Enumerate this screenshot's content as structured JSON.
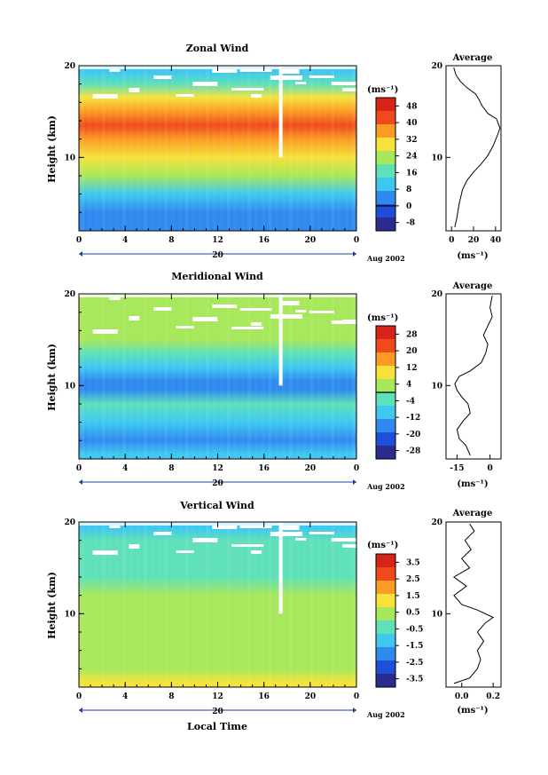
{
  "shared": {
    "xlabel": "Local Time",
    "ylabel": "Height (km)",
    "date_label": "20",
    "date_unit": "Aug 2002",
    "units": "(ms⁻¹)",
    "avg_units": "(ms⁻¹)",
    "avg_title": "Average"
  },
  "chart_data": [
    {
      "type": "heatmap",
      "title": "Zonal Wind",
      "xlabel": "Local Time",
      "ylabel": "Height (km)",
      "x_ticks": [
        "0",
        "4",
        "8",
        "12",
        "16",
        "20",
        "0"
      ],
      "xlim": [
        0,
        24
      ],
      "ylim": [
        2,
        20
      ],
      "y_ticks": [
        "10",
        "20"
      ],
      "colorbar": {
        "label": "(ms⁻¹)",
        "ticks": [
          "48",
          "40",
          "32",
          "24",
          "16",
          "8",
          "0",
          "-8"
        ],
        "range": [
          -12,
          52
        ],
        "zero_line": 0
      },
      "rows": [
        {
          "h": 2.5,
          "v": 2
        },
        {
          "h": 4,
          "v": 6
        },
        {
          "h": 6,
          "v": 12
        },
        {
          "h": 8,
          "v": 20
        },
        {
          "h": 10,
          "v": 29
        },
        {
          "h": 12,
          "v": 38
        },
        {
          "h": 13.5,
          "v": 44
        },
        {
          "h": 15,
          "v": 36
        },
        {
          "h": 16.5,
          "v": 28
        },
        {
          "h": 18,
          "v": 18
        },
        {
          "h": 19.3,
          "v": 8
        }
      ],
      "average": {
        "xticks": [
          "0",
          "20",
          "40"
        ],
        "xlim": [
          -5,
          45
        ],
        "profile": [
          [
            3,
            2.4
          ],
          [
            5,
            3.5
          ],
          [
            7,
            5
          ],
          [
            10,
            6.5
          ],
          [
            14,
            7.5
          ],
          [
            20,
            8.4
          ],
          [
            27,
            9.3
          ],
          [
            33,
            10.2
          ],
          [
            38,
            11.3
          ],
          [
            42,
            12.5
          ],
          [
            44,
            13.2
          ],
          [
            41,
            14.2
          ],
          [
            33,
            14.8
          ],
          [
            28,
            15.6
          ],
          [
            25,
            16.3
          ],
          [
            22,
            16.9
          ],
          [
            14,
            17.6
          ],
          [
            8,
            18.3
          ],
          [
            4,
            19
          ],
          [
            2,
            19.8
          ]
        ]
      }
    },
    {
      "type": "heatmap",
      "title": "Meridional Wind",
      "xlabel": "Local Time",
      "ylabel": "Height (km)",
      "x_ticks": [
        "0",
        "4",
        "8",
        "12",
        "16",
        "20",
        "0"
      ],
      "xlim": [
        0,
        24
      ],
      "ylim": [
        2,
        20
      ],
      "y_ticks": [
        "10",
        "20"
      ],
      "colorbar": {
        "label": "(ms⁻¹)",
        "ticks": [
          "28",
          "20",
          "12",
          "4",
          "-4",
          "-12",
          "-20",
          "-28"
        ],
        "range": [
          -32,
          32
        ],
        "zero_line": 0
      },
      "rows": [
        {
          "h": 2.5,
          "v": -10
        },
        {
          "h": 4,
          "v": -17
        },
        {
          "h": 6,
          "v": -9
        },
        {
          "h": 8,
          "v": -4
        },
        {
          "h": 9.5,
          "v": -14
        },
        {
          "h": 10.5,
          "v": -19
        },
        {
          "h": 12,
          "v": -8
        },
        {
          "h": 13.5,
          "v": -3
        },
        {
          "h": 15,
          "v": 0
        },
        {
          "h": 16.5,
          "v": 4
        },
        {
          "h": 18,
          "v": 6
        },
        {
          "h": 19.3,
          "v": 2
        }
      ],
      "average": {
        "xticks": [
          "-15",
          "0"
        ],
        "xlim": [
          -20,
          5
        ],
        "profile": [
          [
            -9,
            2.4
          ],
          [
            -11,
            3.5
          ],
          [
            -14,
            4.2
          ],
          [
            -15,
            5.2
          ],
          [
            -12,
            6.2
          ],
          [
            -9,
            7
          ],
          [
            -10,
            8
          ],
          [
            -13,
            8.8
          ],
          [
            -15,
            9.5
          ],
          [
            -16,
            10.2
          ],
          [
            -14,
            11
          ],
          [
            -9,
            11.6
          ],
          [
            -4,
            12.5
          ],
          [
            -2,
            13.5
          ],
          [
            -1,
            14.5
          ],
          [
            -3,
            15.5
          ],
          [
            -1,
            16.5
          ],
          [
            1,
            17.5
          ],
          [
            0,
            18.5
          ],
          [
            1,
            19.8
          ]
        ]
      }
    },
    {
      "type": "heatmap",
      "title": "Vertical Wind",
      "xlabel": "Local Time",
      "ylabel": "Height (km)",
      "x_ticks": [
        "0",
        "4",
        "8",
        "12",
        "16",
        "20",
        "0"
      ],
      "xlim": [
        0,
        24
      ],
      "ylim": [
        2,
        20
      ],
      "y_ticks": [
        "10",
        "20"
      ],
      "colorbar": {
        "label": "(ms⁻¹)",
        "ticks": [
          "3.5",
          "2.5",
          "1.5",
          "0.5",
          "-0.5",
          "-1.5",
          "-2.5",
          "-3.5"
        ],
        "range": [
          -4,
          4
        ],
        "zero_line": null
      },
      "rows": [
        {
          "h": 2.5,
          "v": 0.9
        },
        {
          "h": 4,
          "v": 0.6
        },
        {
          "h": 6,
          "v": 0.4
        },
        {
          "h": 8,
          "v": 0.3
        },
        {
          "h": 10,
          "v": 0.2
        },
        {
          "h": 12,
          "v": 0
        },
        {
          "h": 14,
          "v": -0.3
        },
        {
          "h": 16,
          "v": -0.6
        },
        {
          "h": 18,
          "v": -0.8
        },
        {
          "h": 19.3,
          "v": -0.9
        }
      ],
      "average": {
        "xticks": [
          "0.0",
          "0.2"
        ],
        "xlim": [
          -0.1,
          0.25
        ],
        "profile": [
          [
            -0.05,
            2.4
          ],
          [
            0.05,
            3
          ],
          [
            0.1,
            4
          ],
          [
            0.12,
            5
          ],
          [
            0.1,
            6
          ],
          [
            0.14,
            7
          ],
          [
            0.1,
            8
          ],
          [
            0.15,
            9
          ],
          [
            0.2,
            9.6
          ],
          [
            0.1,
            10.4
          ],
          [
            0,
            11
          ],
          [
            -0.05,
            12
          ],
          [
            0.03,
            13
          ],
          [
            -0.05,
            14
          ],
          [
            0.05,
            15
          ],
          [
            0,
            16
          ],
          [
            0.06,
            17
          ],
          [
            0.02,
            18
          ],
          [
            0.08,
            19
          ],
          [
            0.05,
            19.8
          ]
        ]
      }
    }
  ],
  "colors": {
    "scale": [
      "#2a2d8f",
      "#1f4fd8",
      "#2f8af0",
      "#3ec8f0",
      "#5ee0b8",
      "#a6e85a",
      "#f6e23a",
      "#fb9a24",
      "#f04a1c",
      "#d62418"
    ]
  }
}
